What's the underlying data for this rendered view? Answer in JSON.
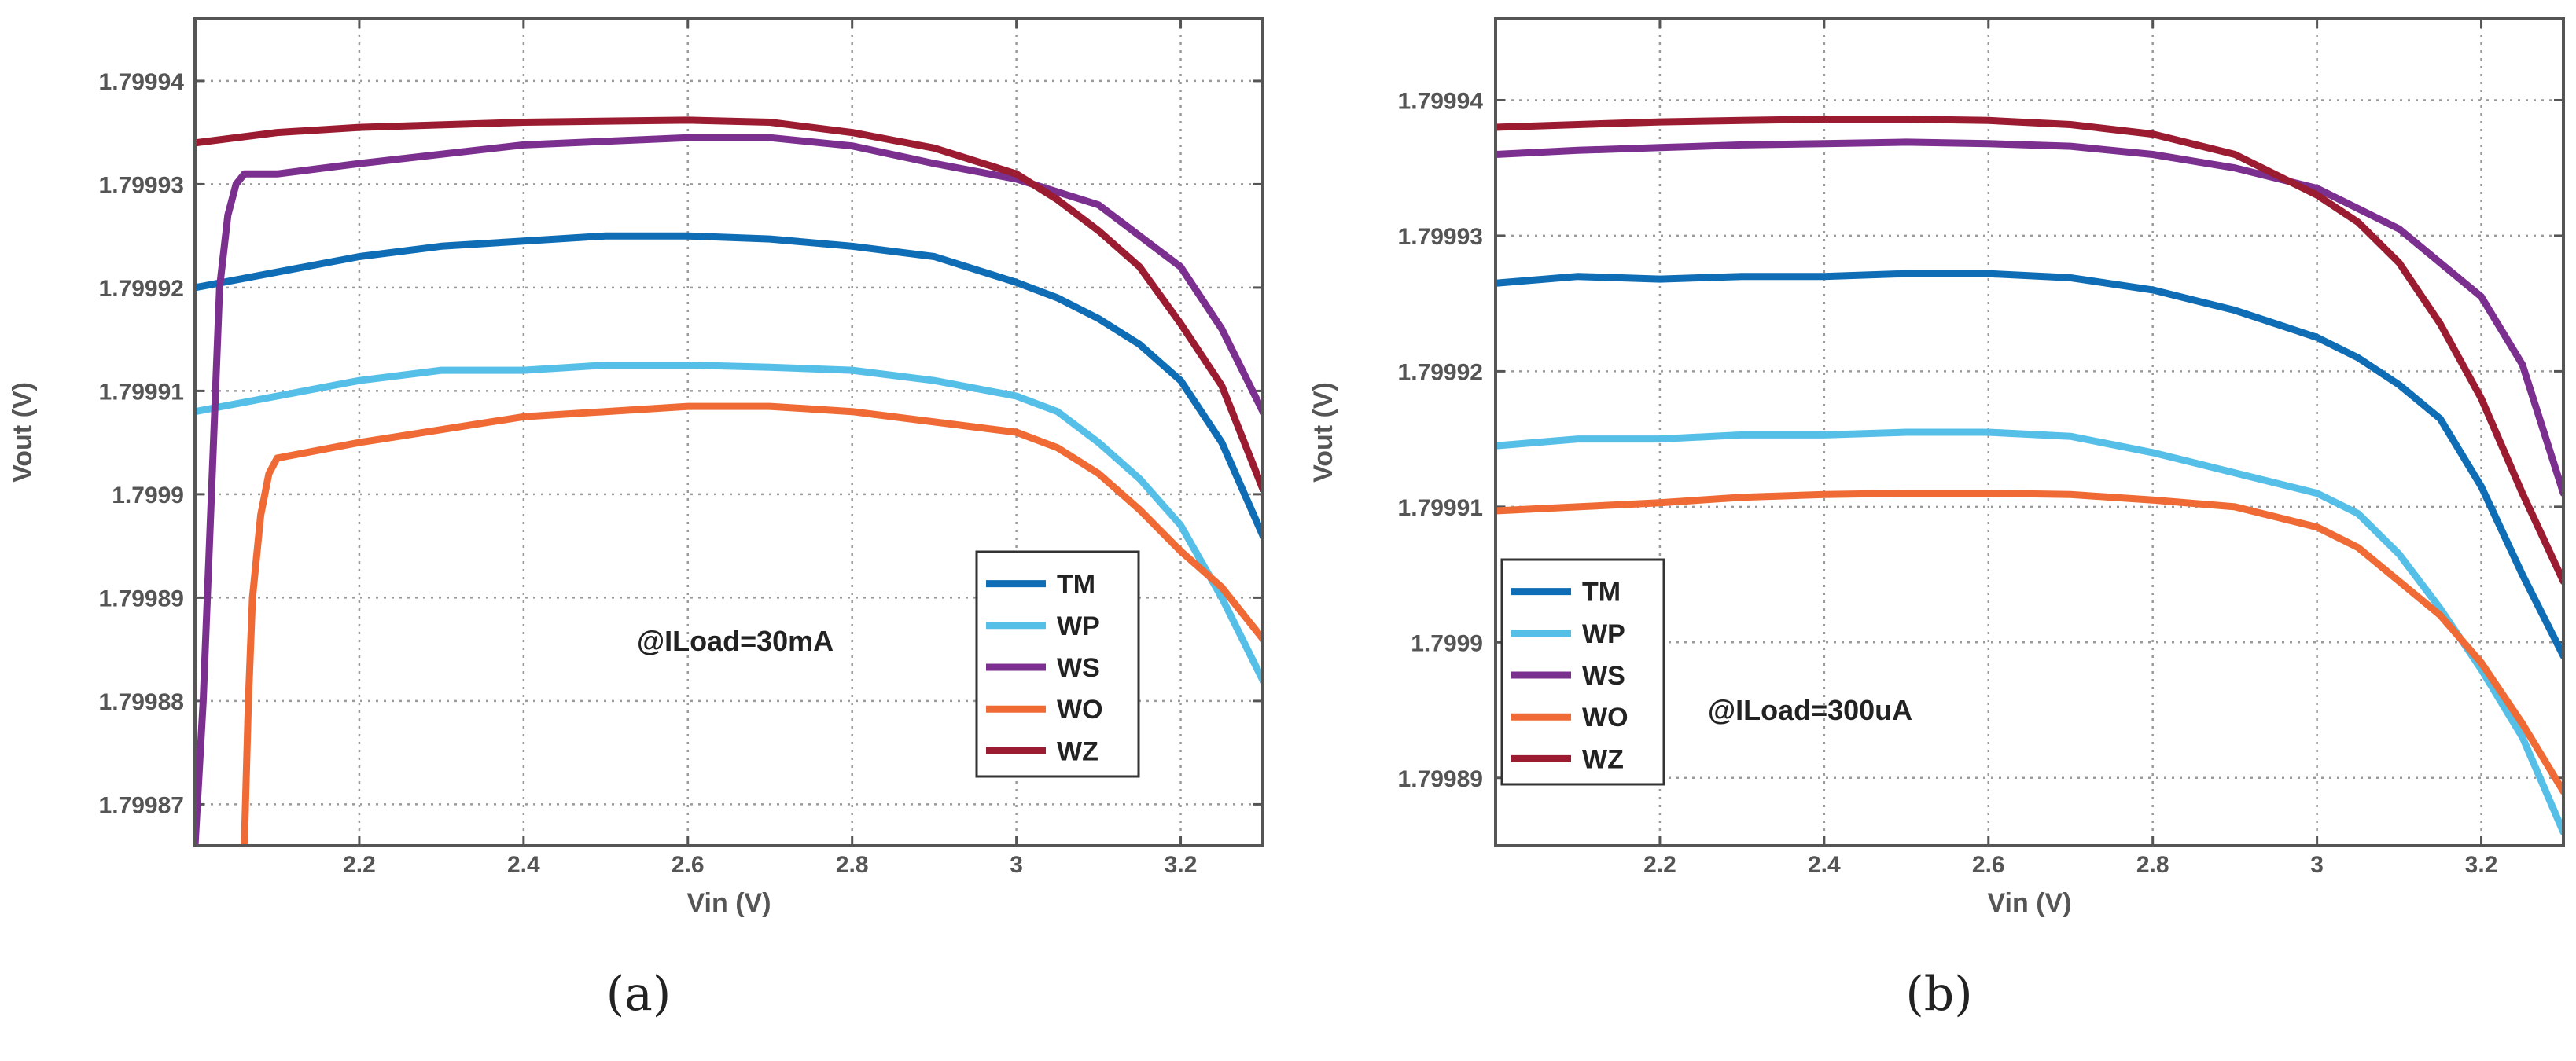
{
  "chart_data": [
    {
      "type": "line",
      "panel": "(a)",
      "annotation": "@ILoad=30mA",
      "xlabel": "Vin (V)",
      "ylabel": "Vout (V)",
      "xlim": [
        2.0,
        3.3
      ],
      "ylim": [
        1.799866,
        1.799946
      ],
      "x_ticks": [
        2.2,
        2.4,
        2.6,
        2.8,
        3,
        3.2
      ],
      "x_tick_labels": [
        "2.2",
        "2.4",
        "2.6",
        "2.8",
        "3",
        "3.2"
      ],
      "y_ticks": [
        1.79987,
        1.79988,
        1.79989,
        1.7999,
        1.79991,
        1.79992,
        1.79993,
        1.79994
      ],
      "y_tick_labels": [
        "1.79987",
        "1.79988",
        "1.79989",
        "1.7999",
        "1.79991",
        "1.79992",
        "1.79993",
        "1.79994"
      ],
      "grid": true,
      "legend_position": "bottom-right",
      "series": [
        {
          "name": "TM",
          "color": "#0f6db5",
          "x": [
            2.0,
            2.1,
            2.2,
            2.3,
            2.4,
            2.5,
            2.6,
            2.7,
            2.8,
            2.9,
            3.0,
            3.05,
            3.1,
            3.15,
            3.2,
            3.25,
            3.3
          ],
          "y": [
            1.79992,
            1.7999215,
            1.799923,
            1.799924,
            1.7999245,
            1.799925,
            1.799925,
            1.7999247,
            1.799924,
            1.799923,
            1.7999205,
            1.799919,
            1.799917,
            1.7999145,
            1.799911,
            1.799905,
            1.799896
          ]
        },
        {
          "name": "WP",
          "color": "#56bfe8",
          "x": [
            2.0,
            2.1,
            2.2,
            2.3,
            2.4,
            2.5,
            2.6,
            2.7,
            2.8,
            2.9,
            3.0,
            3.05,
            3.1,
            3.15,
            3.2,
            3.25,
            3.3
          ],
          "y": [
            1.799908,
            1.7999095,
            1.799911,
            1.799912,
            1.799912,
            1.7999125,
            1.7999125,
            1.7999123,
            1.799912,
            1.799911,
            1.7999095,
            1.799908,
            1.799905,
            1.7999015,
            1.799897,
            1.79989,
            1.799882
          ]
        },
        {
          "name": "WS",
          "color": "#7b2f8e",
          "x": [
            2.0,
            2.01,
            2.02,
            2.03,
            2.04,
            2.05,
            2.06,
            2.1,
            2.2,
            2.4,
            2.6,
            2.7,
            2.8,
            2.9,
            3.0,
            3.1,
            3.2,
            3.25,
            3.3
          ],
          "y": [
            1.799866,
            1.79988,
            1.7999,
            1.79992,
            1.799927,
            1.79993,
            1.799931,
            1.799931,
            1.799932,
            1.7999338,
            1.7999345,
            1.7999345,
            1.7999337,
            1.799932,
            1.7999305,
            1.799928,
            1.799922,
            1.799916,
            1.799908
          ]
        },
        {
          "name": "WO",
          "color": "#ef6a35",
          "x": [
            2.06,
            2.065,
            2.07,
            2.08,
            2.09,
            2.1,
            2.2,
            2.4,
            2.6,
            2.7,
            2.8,
            2.9,
            3.0,
            3.05,
            3.1,
            3.15,
            3.2,
            3.25,
            3.3
          ],
          "y": [
            1.799866,
            1.79988,
            1.79989,
            1.799898,
            1.799902,
            1.7999035,
            1.799905,
            1.7999075,
            1.7999085,
            1.7999085,
            1.799908,
            1.799907,
            1.799906,
            1.7999045,
            1.799902,
            1.7998985,
            1.7998945,
            1.799891,
            1.799886
          ]
        },
        {
          "name": "WZ",
          "color": "#9b1b30",
          "x": [
            2.0,
            2.1,
            2.2,
            2.4,
            2.6,
            2.7,
            2.8,
            2.9,
            3.0,
            3.05,
            3.1,
            3.15,
            3.2,
            3.25,
            3.3
          ],
          "y": [
            1.799934,
            1.799935,
            1.7999355,
            1.799936,
            1.7999362,
            1.799936,
            1.799935,
            1.7999335,
            1.799931,
            1.7999285,
            1.7999255,
            1.799922,
            1.7999165,
            1.7999105,
            1.7999005
          ]
        }
      ]
    },
    {
      "type": "line",
      "panel": "(b)",
      "annotation": "@ILoad=300uA",
      "xlabel": "Vin (V)",
      "ylabel": "Vout (V)",
      "xlim": [
        2.0,
        3.3
      ],
      "ylim": [
        1.799885,
        1.799946
      ],
      "x_ticks": [
        2.2,
        2.4,
        2.6,
        2.8,
        3,
        3.2
      ],
      "x_tick_labels": [
        "2.2",
        "2.4",
        "2.6",
        "2.8",
        "3",
        "3.2"
      ],
      "y_ticks": [
        1.79989,
        1.7999,
        1.79991,
        1.79992,
        1.79993,
        1.79994
      ],
      "y_tick_labels": [
        "1.79989",
        "1.7999",
        "1.79991",
        "1.79992",
        "1.79993",
        "1.79994"
      ],
      "grid": true,
      "legend_position": "bottom-left",
      "series": [
        {
          "name": "TM",
          "color": "#0f6db5",
          "x": [
            2.0,
            2.1,
            2.2,
            2.3,
            2.4,
            2.5,
            2.6,
            2.7,
            2.8,
            2.9,
            3.0,
            3.05,
            3.1,
            3.15,
            3.2,
            3.25,
            3.3
          ],
          "y": [
            1.7999265,
            1.799927,
            1.7999268,
            1.799927,
            1.799927,
            1.7999272,
            1.7999272,
            1.7999269,
            1.799926,
            1.7999245,
            1.7999225,
            1.799921,
            1.799919,
            1.7999165,
            1.7999115,
            1.799905,
            1.799899
          ]
        },
        {
          "name": "WP",
          "color": "#56bfe8",
          "x": [
            2.0,
            2.1,
            2.2,
            2.3,
            2.4,
            2.5,
            2.6,
            2.7,
            2.8,
            2.9,
            3.0,
            3.05,
            3.1,
            3.15,
            3.2,
            3.25,
            3.3
          ],
          "y": [
            1.7999145,
            1.799915,
            1.799915,
            1.7999153,
            1.7999153,
            1.7999155,
            1.7999155,
            1.7999152,
            1.799914,
            1.7999125,
            1.799911,
            1.7999095,
            1.7999065,
            1.7999025,
            1.799898,
            1.799893,
            1.799886
          ]
        },
        {
          "name": "WS",
          "color": "#7b2f8e",
          "x": [
            2.0,
            2.1,
            2.2,
            2.3,
            2.4,
            2.5,
            2.6,
            2.7,
            2.8,
            2.9,
            3.0,
            3.1,
            3.2,
            3.25,
            3.3
          ],
          "y": [
            1.799936,
            1.7999363,
            1.7999365,
            1.7999367,
            1.7999368,
            1.7999369,
            1.7999368,
            1.7999366,
            1.799936,
            1.799935,
            1.7999335,
            1.7999305,
            1.7999255,
            1.7999205,
            1.799911
          ]
        },
        {
          "name": "WO",
          "color": "#ef6a35",
          "x": [
            2.0,
            2.1,
            2.2,
            2.3,
            2.4,
            2.5,
            2.6,
            2.7,
            2.8,
            2.9,
            3.0,
            3.05,
            3.1,
            3.15,
            3.2,
            3.25,
            3.3
          ],
          "y": [
            1.7999097,
            1.79991,
            1.7999103,
            1.7999107,
            1.7999109,
            1.799911,
            1.799911,
            1.7999109,
            1.7999105,
            1.79991,
            1.7999085,
            1.799907,
            1.7999045,
            1.799902,
            1.7998985,
            1.799894,
            1.799889
          ]
        },
        {
          "name": "WZ",
          "color": "#9b1b30",
          "x": [
            2.0,
            2.1,
            2.2,
            2.3,
            2.4,
            2.5,
            2.6,
            2.7,
            2.8,
            2.9,
            3.0,
            3.05,
            3.1,
            3.15,
            3.2,
            3.25,
            3.3
          ],
          "y": [
            1.799938,
            1.7999382,
            1.7999384,
            1.7999385,
            1.7999386,
            1.7999386,
            1.7999385,
            1.7999382,
            1.7999375,
            1.799936,
            1.799933,
            1.799931,
            1.799928,
            1.7999235,
            1.799918,
            1.799911,
            1.7999045
          ]
        }
      ]
    }
  ]
}
